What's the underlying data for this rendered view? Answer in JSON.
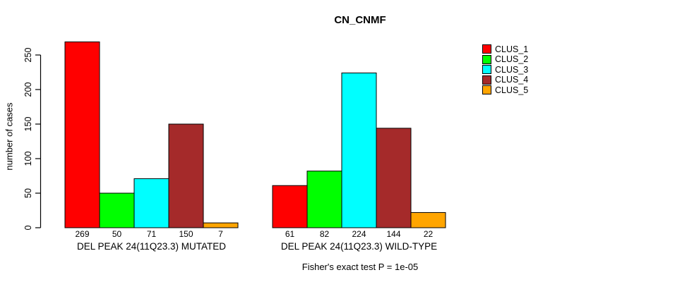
{
  "title": "CN_CNMF",
  "y_axis": {
    "label": "number of cases"
  },
  "footnote": "Fisher's exact test P = 1e-05",
  "chart_data": {
    "type": "bar",
    "title": "CN_CNMF",
    "xlabel": "",
    "ylabel": "number of cases",
    "ylim": [
      0,
      250
    ],
    "yticks": [
      0,
      50,
      100,
      150,
      200,
      250
    ],
    "grid": false,
    "legend_position": "right",
    "bar_value_labels": true,
    "categories": [
      "DEL PEAK 24(11Q23.3) MUTATED",
      "DEL PEAK 24(11Q23.3) WILD-TYPE"
    ],
    "series": [
      {
        "name": "CLUS_1",
        "color": "#FF0000",
        "values": [
          269,
          61
        ]
      },
      {
        "name": "CLUS_2",
        "color": "#00FF00",
        "values": [
          50,
          82
        ]
      },
      {
        "name": "CLUS_3",
        "color": "#00FFFF",
        "values": [
          71,
          224
        ]
      },
      {
        "name": "CLUS_4",
        "color": "#A52A2A",
        "values": [
          150,
          144
        ]
      },
      {
        "name": "CLUS_5",
        "color": "#FFA500",
        "values": [
          7,
          22
        ]
      }
    ],
    "annotation": "Fisher's exact test P = 1e-05"
  }
}
